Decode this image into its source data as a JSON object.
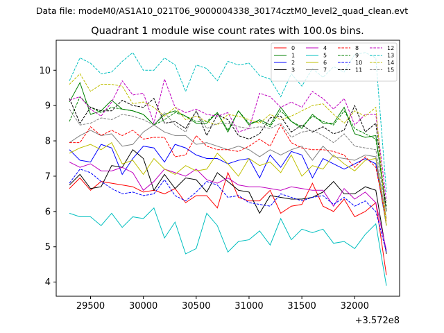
{
  "chart_data": {
    "type": "line",
    "suptitle": "Data file: modeM0/AS1A10_021T06_9000004338_30174cztM0_level2_quad_clean.evt",
    "title": "Quadrant 1 module wise count rates with 100.0s bins.",
    "xlabel": "",
    "ylabel": "",
    "x_offset_label": "+3.572e8",
    "xlim": [
      29175,
      32425
    ],
    "ylim": [
      3.6,
      10.85
    ],
    "xticks": [
      29500,
      30000,
      30500,
      31000,
      31500,
      32000
    ],
    "yticks": [
      4,
      5,
      6,
      7,
      8,
      9,
      10
    ],
    "grid": false,
    "legend_position": "top-right",
    "legend_columns": 4,
    "x": [
      29300,
      29400,
      29500,
      29600,
      29700,
      29800,
      29900,
      30000,
      30100,
      30200,
      30300,
      30400,
      30500,
      30600,
      30700,
      30800,
      30900,
      31000,
      31100,
      31200,
      31300,
      31400,
      31500,
      31600,
      31700,
      31800,
      31900,
      32000,
      32100,
      32200,
      32300
    ],
    "series": [
      {
        "name": "0",
        "color": "#ff0000",
        "dashed": false,
        "values": [
          6.65,
          6.95,
          6.6,
          6.85,
          6.8,
          6.75,
          6.7,
          6.55,
          6.6,
          6.5,
          6.65,
          6.25,
          6.45,
          6.45,
          6.1,
          7.1,
          6.4,
          6.3,
          6.3,
          6.6,
          5.95,
          6.15,
          6.2,
          6.8,
          6.15,
          6.0,
          6.35,
          5.85,
          6.0,
          6.25,
          4.2
        ]
      },
      {
        "name": "1",
        "color": "#008000",
        "dashed": false,
        "values": [
          9.1,
          9.65,
          8.75,
          8.85,
          9.15,
          8.9,
          8.85,
          8.75,
          8.45,
          8.75,
          8.85,
          8.7,
          8.5,
          8.5,
          8.8,
          8.25,
          8.85,
          8.45,
          8.6,
          8.45,
          8.95,
          8.55,
          8.35,
          8.75,
          8.5,
          8.5,
          8.95,
          8.2,
          8.1,
          8.15,
          6.0
        ]
      },
      {
        "name": "2",
        "color": "#0000ff",
        "dashed": false,
        "values": [
          7.75,
          7.45,
          7.4,
          7.9,
          7.8,
          7.05,
          7.5,
          7.85,
          7.8,
          7.4,
          7.9,
          7.8,
          7.6,
          7.5,
          7.5,
          7.35,
          7.45,
          7.5,
          6.95,
          7.6,
          7.25,
          7.7,
          7.6,
          6.95,
          7.5,
          7.35,
          7.2,
          7.35,
          7.5,
          7.35,
          5.6
        ]
      },
      {
        "name": "3",
        "color": "#000000",
        "dashed": false,
        "values": [
          6.75,
          7.05,
          6.65,
          6.7,
          7.3,
          7.25,
          7.75,
          7.5,
          6.6,
          7.05,
          6.65,
          6.95,
          6.9,
          6.55,
          7.1,
          6.85,
          6.6,
          6.55,
          5.95,
          6.45,
          6.4,
          6.35,
          6.35,
          6.4,
          6.55,
          6.85,
          6.5,
          6.5,
          6.7,
          6.6,
          4.8
        ]
      },
      {
        "name": "4",
        "color": "#bf00bf",
        "dashed": false,
        "values": [
          7.4,
          7.25,
          7.35,
          7.15,
          7.15,
          7.25,
          7.1,
          6.6,
          6.85,
          7.2,
          7.1,
          7.0,
          7.2,
          6.9,
          6.8,
          6.95,
          6.75,
          6.7,
          6.7,
          6.65,
          6.6,
          6.7,
          6.65,
          6.6,
          6.6,
          6.15,
          6.65,
          6.35,
          6.55,
          6.25,
          4.9
        ]
      },
      {
        "name": "5",
        "color": "#00bfbf",
        "dashed": false,
        "values": [
          5.95,
          5.85,
          5.85,
          5.6,
          5.95,
          5.55,
          5.85,
          5.8,
          6.1,
          5.25,
          5.7,
          4.8,
          4.95,
          5.95,
          5.6,
          4.85,
          5.15,
          5.2,
          5.45,
          5.05,
          5.8,
          5.2,
          5.5,
          5.4,
          5.5,
          5.1,
          5.15,
          4.95,
          5.35,
          5.65,
          3.9
        ]
      },
      {
        "name": "6",
        "color": "#bfbf00",
        "dashed": false,
        "values": [
          7.65,
          7.8,
          7.9,
          7.75,
          7.95,
          7.35,
          7.45,
          7.05,
          7.5,
          7.2,
          7.05,
          7.3,
          7.15,
          7.2,
          7.65,
          7.35,
          7.0,
          7.5,
          7.3,
          7.4,
          7.1,
          7.6,
          7.0,
          7.3,
          7.2,
          7.6,
          7.35,
          7.15,
          7.45,
          7.5,
          5.6
        ]
      },
      {
        "name": "7",
        "color": "#808080",
        "dashed": false,
        "values": [
          7.95,
          8.15,
          8.3,
          8.15,
          8.2,
          7.85,
          7.9,
          8.25,
          8.45,
          8.25,
          8.15,
          8.15,
          7.9,
          7.95,
          7.85,
          7.75,
          7.85,
          7.75,
          7.55,
          7.75,
          7.6,
          7.75,
          7.85,
          7.45,
          7.85,
          7.55,
          7.5,
          7.45,
          7.6,
          7.55,
          5.8
        ]
      },
      {
        "name": "8",
        "color": "#ff0000",
        "dashed": true,
        "values": [
          7.95,
          7.95,
          8.4,
          8.15,
          8.3,
          8.15,
          8.3,
          8.05,
          8.1,
          8.1,
          7.55,
          7.6,
          8.15,
          7.85,
          7.75,
          7.75,
          7.7,
          7.85,
          8.05,
          7.85,
          8.45,
          7.95,
          7.8,
          7.75,
          7.75,
          7.7,
          7.6,
          7.25,
          7.55,
          7.25,
          5.75
        ]
      },
      {
        "name": "9",
        "color": "#008000",
        "dashed": true,
        "values": [
          8.55,
          9.25,
          8.95,
          8.8,
          8.95,
          8.9,
          8.85,
          8.75,
          8.45,
          8.6,
          8.8,
          8.7,
          8.55,
          8.55,
          8.8,
          8.3,
          8.85,
          8.5,
          8.55,
          8.4,
          8.85,
          8.55,
          8.4,
          8.7,
          8.55,
          8.45,
          8.85,
          8.35,
          8.2,
          8.05,
          6.15
        ]
      },
      {
        "name": "10",
        "color": "#0000ff",
        "dashed": true,
        "values": [
          6.8,
          7.2,
          7.1,
          6.85,
          6.65,
          6.5,
          6.55,
          6.45,
          6.5,
          6.9,
          6.45,
          6.3,
          6.55,
          6.85,
          6.75,
          6.4,
          6.45,
          6.25,
          6.2,
          6.15,
          6.5,
          6.4,
          6.3,
          6.4,
          6.45,
          6.2,
          6.4,
          6.15,
          6.3,
          6.0,
          4.85
        ]
      },
      {
        "name": "11",
        "color": "#000000",
        "dashed": true,
        "values": [
          9.2,
          8.5,
          8.95,
          8.85,
          8.85,
          9.15,
          9.0,
          8.95,
          9.2,
          8.5,
          8.55,
          8.35,
          8.85,
          8.15,
          8.75,
          8.6,
          8.15,
          8.05,
          8.2,
          8.65,
          8.7,
          8.25,
          8.45,
          8.25,
          8.4,
          8.2,
          8.3,
          9.0,
          8.25,
          8.5,
          6.0
        ]
      },
      {
        "name": "12",
        "color": "#bf00bf",
        "dashed": true,
        "values": [
          9.15,
          9.25,
          8.9,
          8.7,
          9.1,
          9.7,
          9.3,
          9.35,
          8.5,
          9.75,
          8.95,
          8.8,
          8.9,
          8.75,
          8.7,
          8.8,
          8.25,
          8.35,
          9.35,
          9.25,
          8.95,
          9.1,
          8.95,
          9.4,
          9.2,
          8.9,
          9.2,
          8.45,
          8.75,
          8.75,
          6.3
        ]
      },
      {
        "name": "13",
        "color": "#00bfbf",
        "dashed": true,
        "values": [
          9.7,
          10.35,
          10.2,
          9.9,
          9.95,
          10.25,
          10.5,
          10.0,
          10.0,
          10.35,
          10.15,
          9.4,
          10.15,
          10.05,
          9.7,
          10.25,
          10.15,
          10.2,
          9.85,
          9.75,
          9.25,
          9.9,
          9.55,
          10.05,
          9.8,
          10.1,
          9.95,
          10.45,
          10.5,
          10.35,
          6.55
        ]
      },
      {
        "name": "14",
        "color": "#bfbf00",
        "dashed": true,
        "values": [
          9.6,
          9.9,
          9.4,
          9.6,
          9.6,
          9.55,
          9.05,
          9.1,
          8.95,
          8.7,
          8.95,
          8.6,
          8.7,
          8.55,
          8.45,
          8.75,
          8.7,
          8.6,
          8.5,
          8.75,
          8.6,
          8.7,
          8.85,
          9.0,
          9.05,
          8.75,
          8.5,
          8.85,
          8.7,
          8.95,
          5.6
        ]
      },
      {
        "name": "15",
        "color": "#808080",
        "dashed": true,
        "values": [
          8.9,
          8.45,
          8.5,
          8.65,
          8.6,
          8.75,
          8.7,
          8.6,
          8.45,
          8.8,
          8.45,
          8.25,
          8.85,
          8.35,
          8.5,
          8.5,
          8.4,
          8.35,
          8.4,
          8.35,
          8.5,
          8.1,
          8.25,
          8.3,
          8.15,
          7.95,
          8.2,
          7.85,
          7.8,
          7.75,
          6.0
        ]
      }
    ]
  }
}
